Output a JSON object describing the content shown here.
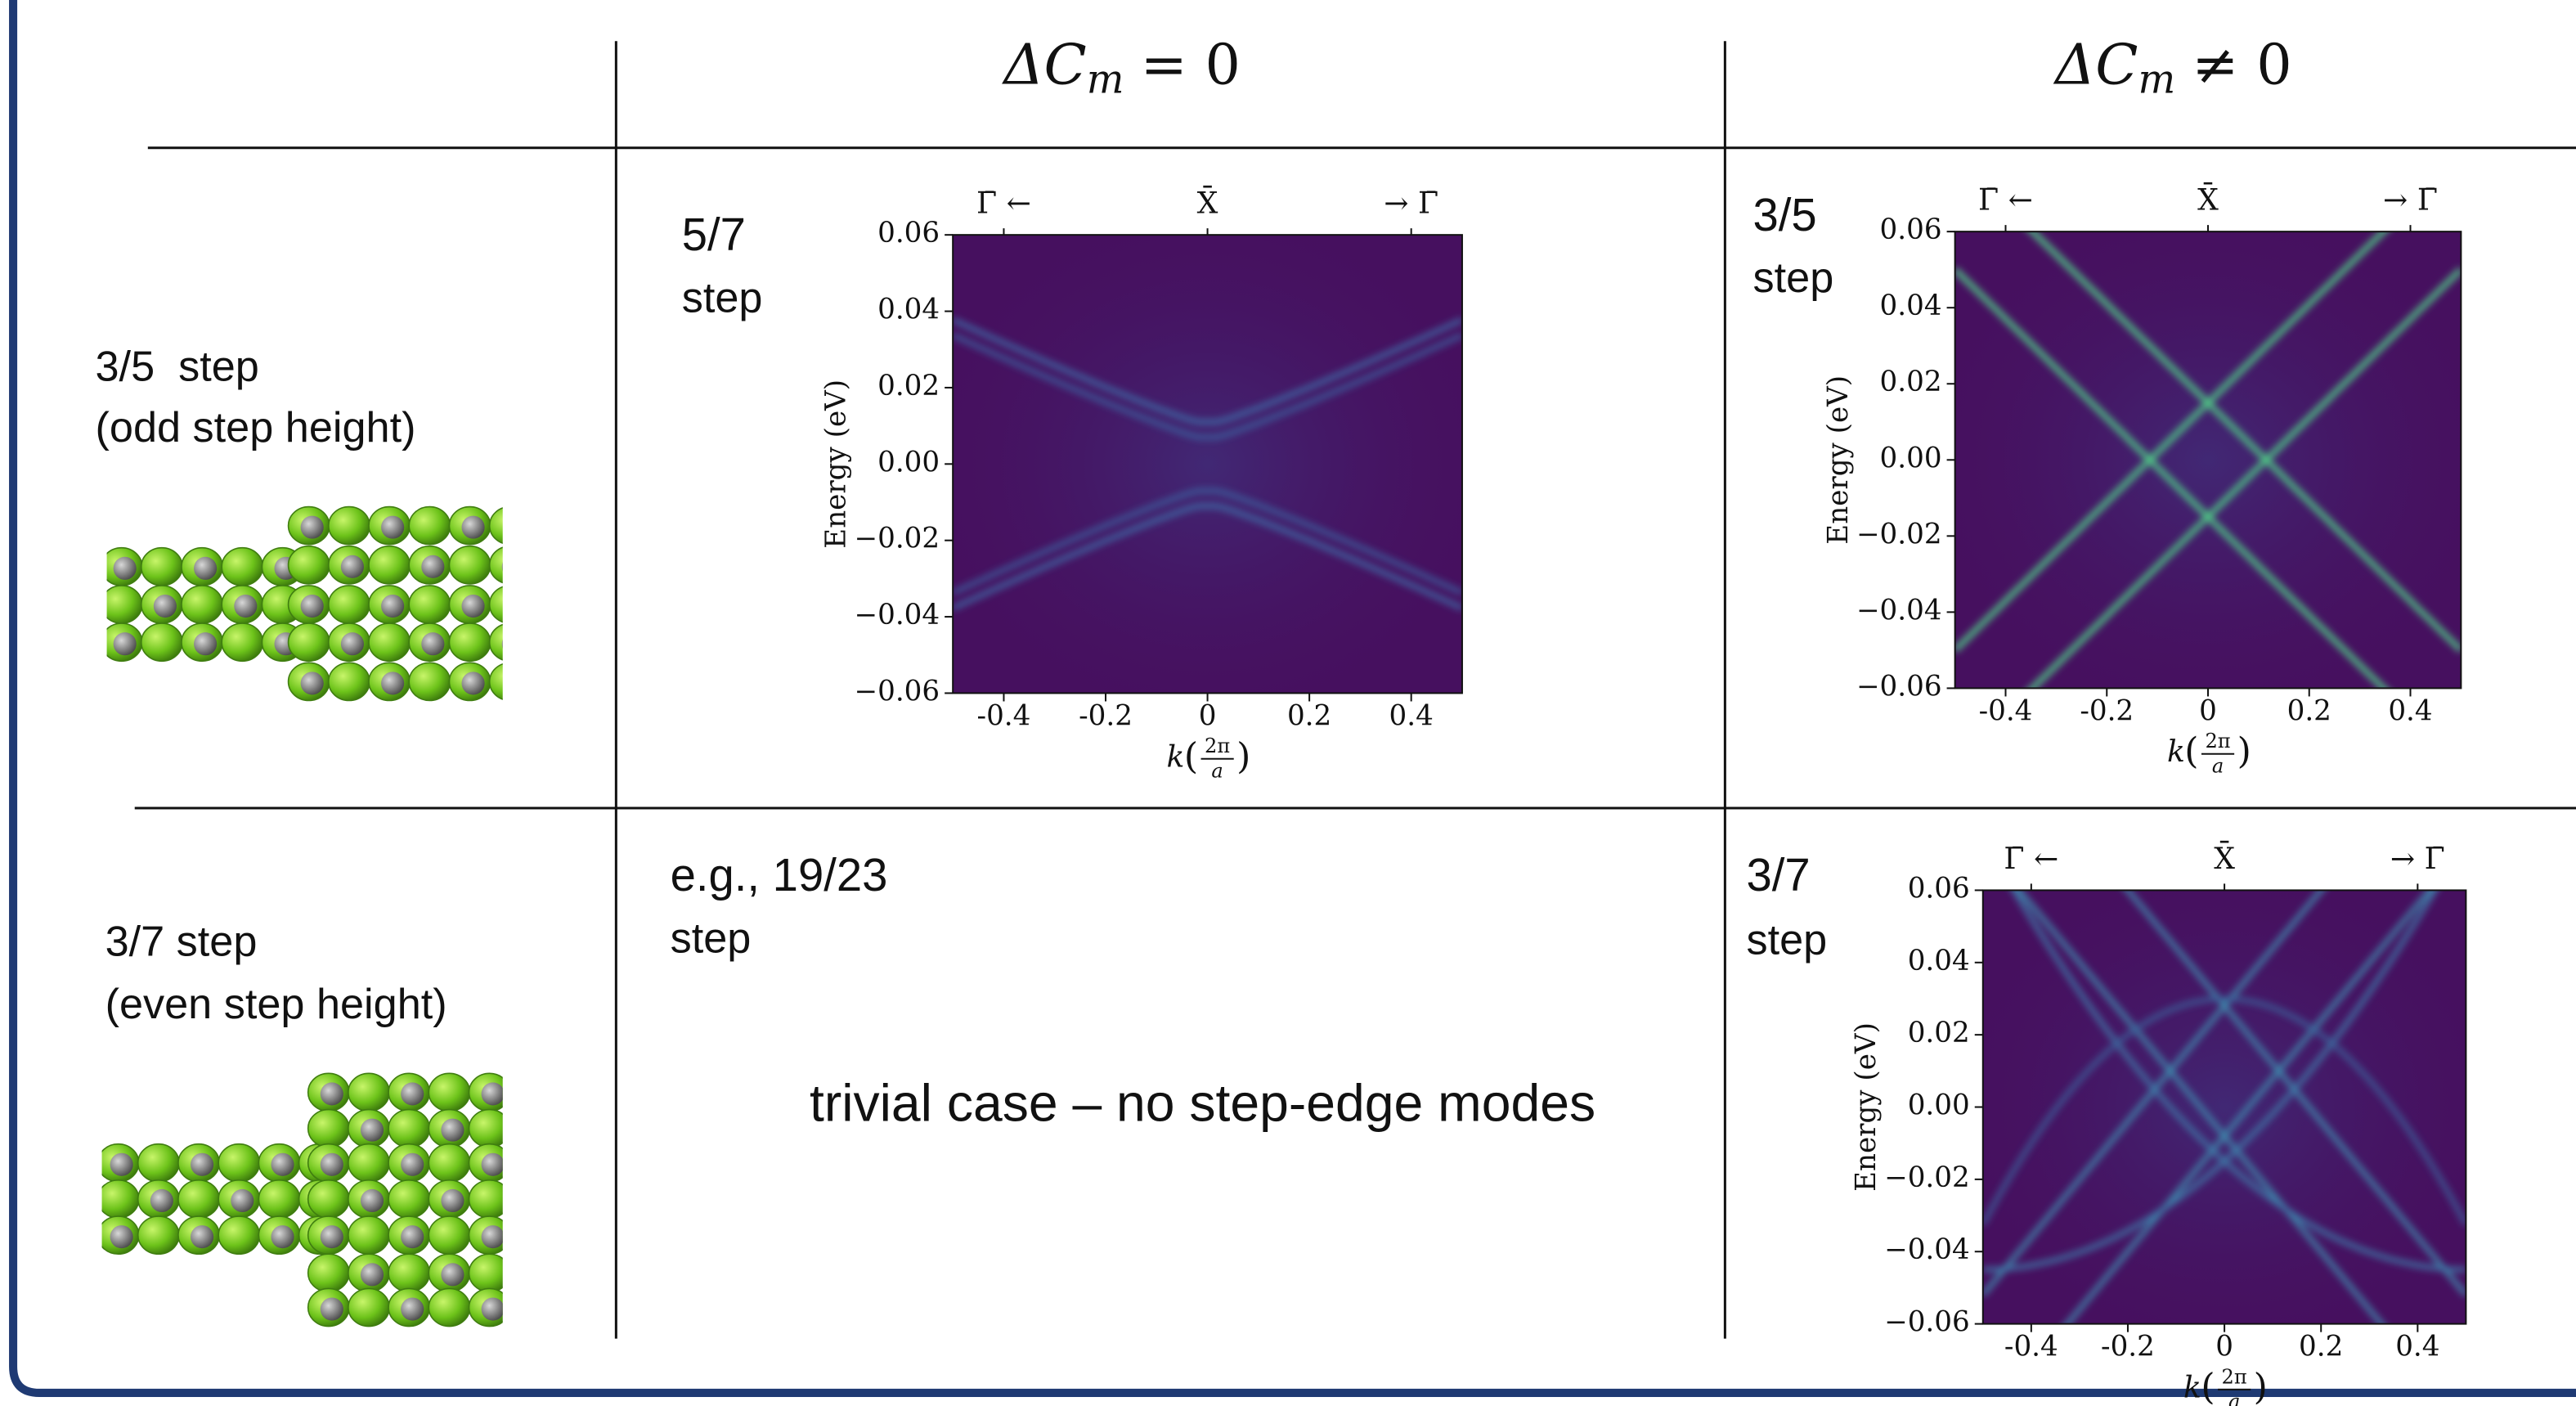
{
  "header": {
    "columns": [
      {
        "symbol": "ΔC",
        "subscript": "m",
        "relation": "= 0"
      },
      {
        "symbol": "ΔC",
        "subscript": "m",
        "relation": "≠ 0"
      }
    ]
  },
  "rows": [
    {
      "label": "3/5  step",
      "note": "(odd step height)"
    },
    {
      "label": "3/7 step",
      "note": "(even step height)"
    }
  ],
  "trivial_cell": {
    "label": "e.g., 19/23",
    "sublabel": "step",
    "text": "trivial case – no step-edge modes"
  },
  "plots": [
    {
      "label": "5/7",
      "sublabel": "step",
      "chart": {
        "type": "heatmap",
        "y_label": "Energy (eV)",
        "x_label": {
          "var": "k",
          "numerator": "2π",
          "denominator": "a"
        },
        "top_labels": [
          "Γ̄ ←",
          "X̄",
          "→ Γ̄"
        ],
        "xlim": [
          -0.5,
          0.5
        ],
        "ylim": [
          -0.06,
          0.06
        ],
        "xticks": [
          -0.4,
          -0.2,
          0,
          0.2,
          0.4
        ],
        "yticks": [
          0.06,
          0.04,
          0.02,
          {
            "value": 0,
            "label": "0.00"
          },
          {
            "value": -0.02,
            "label": "−0.02"
          },
          {
            "value": -0.04,
            "label": "−0.04"
          },
          {
            "value": -0.06,
            "label": "−0.06"
          }
        ]
      }
    },
    {
      "label": "3/5",
      "sublabel": "step",
      "chart": {
        "type": "heatmap",
        "y_label": "Energy (eV)",
        "x_label": {
          "var": "k",
          "numerator": "2π",
          "denominator": "a"
        },
        "top_labels": [
          "Γ̄ ←",
          "X̄",
          "→ Γ̄"
        ],
        "xlim": [
          -0.5,
          0.5
        ],
        "ylim": [
          -0.06,
          0.06
        ],
        "xticks": [
          -0.4,
          -0.2,
          0,
          0.2,
          0.4
        ],
        "yticks": [
          0.06,
          0.04,
          0.02,
          {
            "value": 0,
            "label": "0.00"
          },
          {
            "value": -0.02,
            "label": "−0.02"
          },
          {
            "value": -0.04,
            "label": "−0.04"
          },
          {
            "value": -0.06,
            "label": "−0.06"
          }
        ]
      }
    },
    {
      "label": "3/7",
      "sublabel": "step",
      "chart": {
        "type": "heatmap",
        "y_label": "Energy (eV)",
        "x_label": {
          "var": "k",
          "numerator": "2π",
          "denominator": "a"
        },
        "top_labels": [
          "Γ̄ ←",
          "X̄",
          "→ Γ̄"
        ],
        "xlim": [
          -0.5,
          0.5
        ],
        "ylim": [
          -0.06,
          0.06
        ],
        "xticks": [
          -0.4,
          -0.2,
          0,
          0.2,
          0.4
        ],
        "yticks": [
          0.06,
          0.04,
          0.02,
          {
            "value": 0,
            "label": "0.00"
          },
          {
            "value": -0.02,
            "label": "−0.02"
          },
          {
            "value": -0.04,
            "label": "−0.04"
          },
          {
            "value": -0.06,
            "label": "−0.06"
          }
        ]
      }
    }
  ]
}
